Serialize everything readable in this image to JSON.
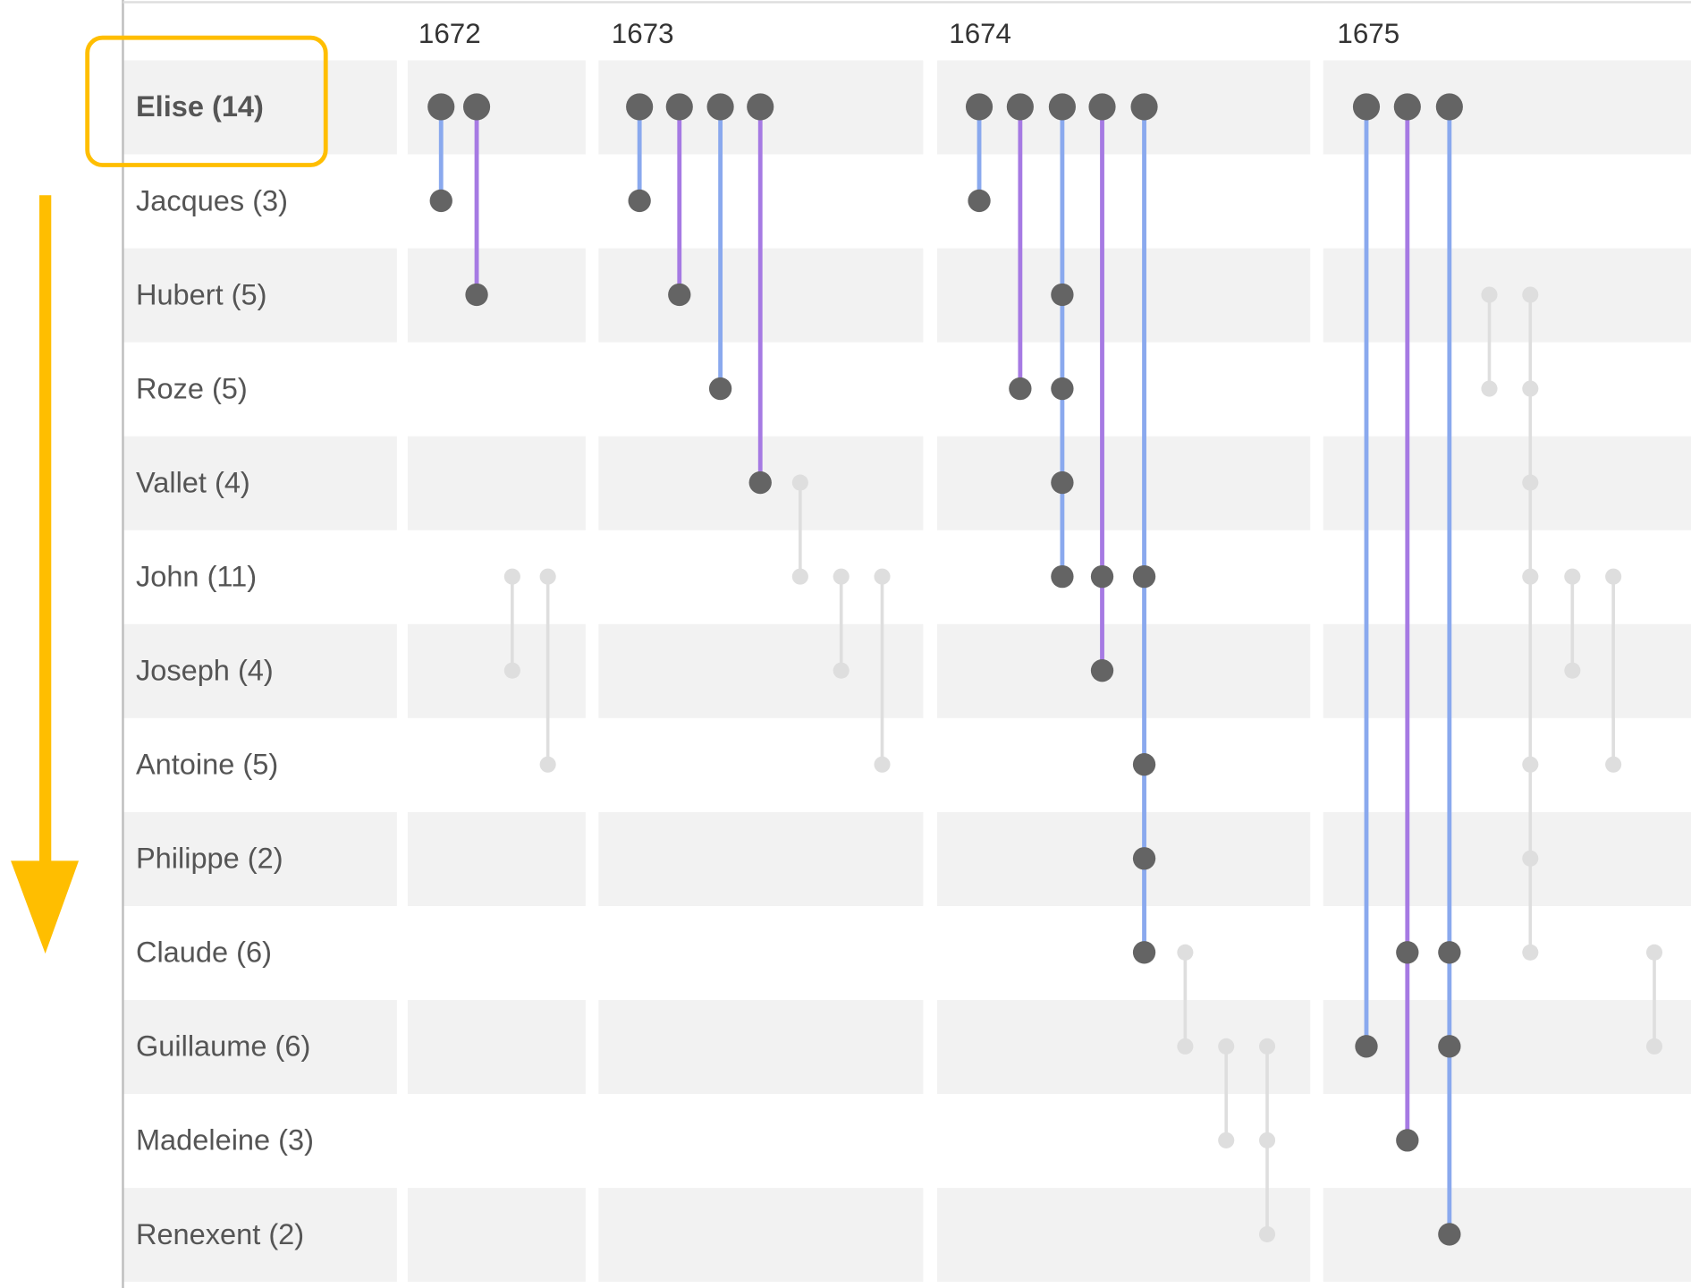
{
  "years": [
    "1672",
    "1673",
    "1674",
    "1675"
  ],
  "people": [
    {
      "label": "Elise (14)",
      "selected": true
    },
    {
      "label": "Jacques (3)",
      "selected": false
    },
    {
      "label": "Hubert (5)",
      "selected": false
    },
    {
      "label": "Roze (5)",
      "selected": false
    },
    {
      "label": "Vallet (4)",
      "selected": false
    },
    {
      "label": "John (11)",
      "selected": false
    },
    {
      "label": "Joseph (4)",
      "selected": false
    },
    {
      "label": "Antoine (5)",
      "selected": false
    },
    {
      "label": "Philippe (2)",
      "selected": false
    },
    {
      "label": "Claude (6)",
      "selected": false
    },
    {
      "label": "Guillaume (6)",
      "selected": false
    },
    {
      "label": "Madeleine (3)",
      "selected": false
    },
    {
      "label": "Renexent (2)",
      "selected": false
    }
  ],
  "colors": {
    "link_blue": "#8aa9ee",
    "link_purple": "#a67ae3",
    "node_dark": "#646464",
    "faded": "#dedede",
    "row_band": "#f2f2f2",
    "highlight": "#ffbe00"
  },
  "highlighted_person": "Elise (14)",
  "links": [
    {
      "year": "1672",
      "people": [
        "Elise (14)",
        "Jacques (3)"
      ],
      "color": "blue"
    },
    {
      "year": "1672",
      "people": [
        "Elise (14)",
        "Hubert (5)"
      ],
      "color": "purple"
    },
    {
      "year": "1672",
      "people": [
        "John (11)",
        "Joseph (4)"
      ],
      "color": "faded"
    },
    {
      "year": "1672",
      "people": [
        "John (11)",
        "Antoine (5)"
      ],
      "color": "faded"
    },
    {
      "year": "1673",
      "people": [
        "Elise (14)",
        "Jacques (3)"
      ],
      "color": "blue"
    },
    {
      "year": "1673",
      "people": [
        "Elise (14)",
        "Hubert (5)"
      ],
      "color": "purple"
    },
    {
      "year": "1673",
      "people": [
        "Elise (14)",
        "Roze (5)"
      ],
      "color": "blue"
    },
    {
      "year": "1673",
      "people": [
        "Elise (14)",
        "Vallet (4)"
      ],
      "color": "purple"
    },
    {
      "year": "1673",
      "people": [
        "Vallet (4)",
        "John (11)"
      ],
      "color": "faded"
    },
    {
      "year": "1673",
      "people": [
        "John (11)",
        "Joseph (4)"
      ],
      "color": "faded"
    },
    {
      "year": "1673",
      "people": [
        "John (11)",
        "Antoine (5)"
      ],
      "color": "faded"
    },
    {
      "year": "1674",
      "people": [
        "Elise (14)",
        "Jacques (3)"
      ],
      "color": "blue"
    },
    {
      "year": "1674",
      "people": [
        "Elise (14)",
        "Roze (5)"
      ],
      "color": "purple"
    },
    {
      "year": "1674",
      "people": [
        "Elise (14)",
        "Hubert (5)",
        "Roze (5)",
        "Vallet (4)",
        "John (11)"
      ],
      "color": "blue"
    },
    {
      "year": "1674",
      "people": [
        "Elise (14)",
        "John (11)",
        "Joseph (4)"
      ],
      "color": "purple"
    },
    {
      "year": "1674",
      "people": [
        "Elise (14)",
        "John (11)",
        "Antoine (5)",
        "Philippe (2)",
        "Claude (6)"
      ],
      "color": "blue"
    },
    {
      "year": "1674",
      "people": [
        "Claude (6)",
        "Guillaume (6)"
      ],
      "color": "faded"
    },
    {
      "year": "1674",
      "people": [
        "Guillaume (6)",
        "Madeleine (3)"
      ],
      "color": "faded"
    },
    {
      "year": "1674",
      "people": [
        "Guillaume (6)",
        "Madeleine (3)",
        "Renexent (2)"
      ],
      "color": "faded"
    },
    {
      "year": "1675",
      "people": [
        "Elise (14)",
        "Guillaume (6)"
      ],
      "color": "blue"
    },
    {
      "year": "1675",
      "people": [
        "Elise (14)",
        "Claude (6)",
        "Madeleine (3)"
      ],
      "color": "purple"
    },
    {
      "year": "1675",
      "people": [
        "Elise (14)",
        "Claude (6)",
        "Guillaume (6)",
        "Renexent (2)"
      ],
      "color": "blue"
    },
    {
      "year": "1675",
      "people": [
        "Hubert (5)",
        "Roze (5)"
      ],
      "color": "faded"
    },
    {
      "year": "1675",
      "people": [
        "Hubert (5)",
        "Roze (5)",
        "Vallet (4)",
        "John (11)",
        "Antoine (5)",
        "Philippe (2)",
        "Claude (6)"
      ],
      "color": "faded"
    },
    {
      "year": "1675",
      "people": [
        "John (11)",
        "Joseph (4)"
      ],
      "color": "faded"
    },
    {
      "year": "1675",
      "people": [
        "John (11)",
        "Antoine (5)"
      ],
      "color": "faded"
    },
    {
      "year": "1675",
      "people": [
        "Claude (6)",
        "Guillaume (6)"
      ],
      "color": "faded"
    }
  ]
}
